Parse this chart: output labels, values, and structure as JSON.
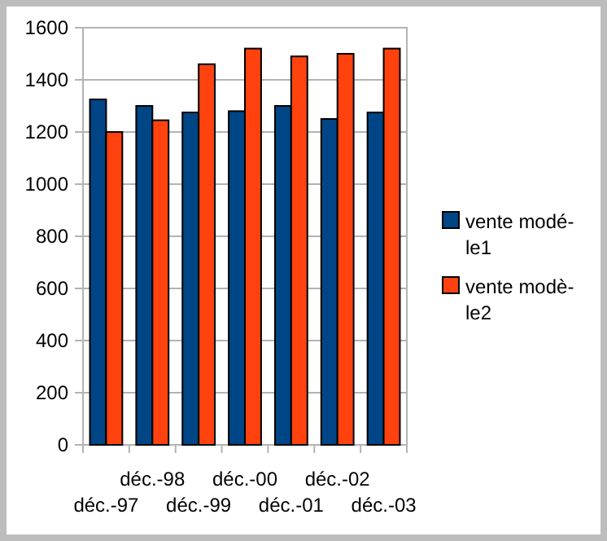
{
  "chart_data": {
    "type": "bar",
    "categories": [
      "déc.-97",
      "déc.-98",
      "déc.-99",
      "déc.-00",
      "déc.-01",
      "déc.-02",
      "déc.-03"
    ],
    "series": [
      {
        "name": "vente modé-le1",
        "color": "#004586",
        "values": [
          1325,
          1300,
          1275,
          1280,
          1300,
          1250,
          1275
        ]
      },
      {
        "name": "vente modè-le2",
        "color": "#ff420e",
        "values": [
          1200,
          1245,
          1460,
          1520,
          1490,
          1500,
          1520
        ]
      }
    ],
    "ylim": [
      0,
      1600
    ],
    "yticks": [
      0,
      200,
      400,
      600,
      800,
      1000,
      1200,
      1400,
      1600
    ],
    "grid": "y",
    "legend": "right"
  }
}
